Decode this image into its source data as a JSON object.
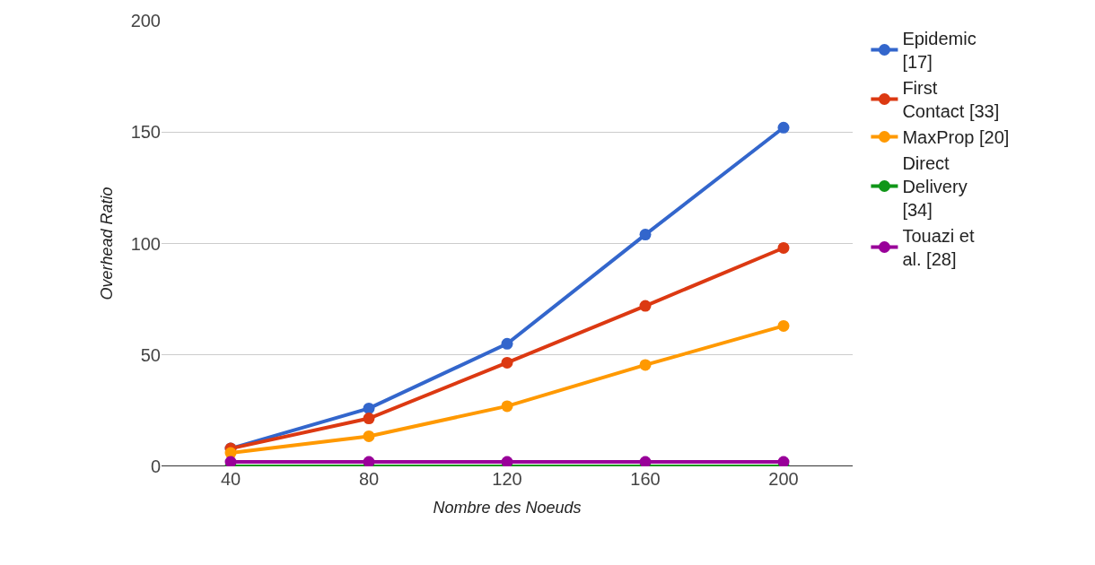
{
  "chart_data": {
    "type": "line",
    "xlabel": "Nombre des Noeuds",
    "ylabel": "Overhead Ratio",
    "x": [
      40,
      80,
      120,
      160,
      200
    ],
    "series": [
      {
        "name": "Epidemic [17]",
        "color": "#3366cc",
        "values": [
          8,
          26,
          55,
          104,
          152
        ]
      },
      {
        "name": "First Contact [33]",
        "color": "#dc3912",
        "values": [
          8,
          21.5,
          46.5,
          72,
          98
        ]
      },
      {
        "name": "MaxProp [20]",
        "color": "#ff9900",
        "values": [
          6,
          13.5,
          27,
          45.5,
          63
        ]
      },
      {
        "name": "Direct Delivery [34]",
        "color": "#109618",
        "values": [
          0,
          0,
          0,
          0,
          0
        ]
      },
      {
        "name": "Touazi et al. [28]",
        "color": "#990099",
        "values": [
          2,
          2,
          2,
          2,
          2
        ]
      }
    ],
    "xlim": [
      20,
      220
    ],
    "xticks": [
      40,
      80,
      120,
      160,
      200
    ],
    "ylim": [
      0,
      200
    ],
    "yticks": [
      0,
      50,
      100,
      150,
      200
    ],
    "grid": "y",
    "legend": "right",
    "marker": "circle",
    "line_style": "solid"
  }
}
